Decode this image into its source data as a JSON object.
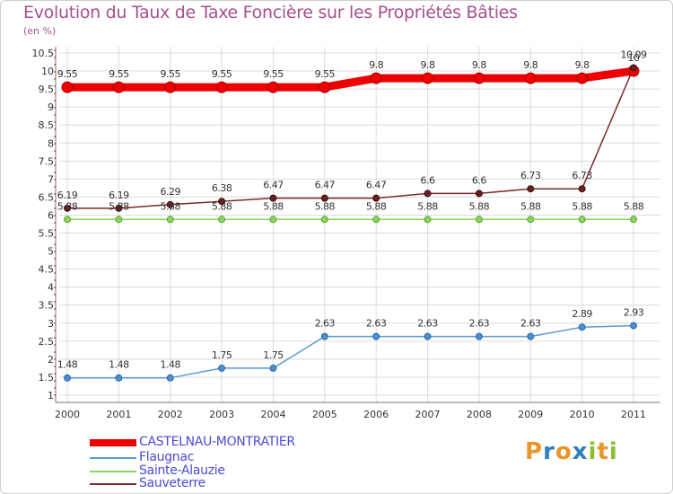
{
  "title": "Evolution du Taux de Taxe Foncière sur les Propriétés Bâties",
  "unit_label": "(en %)",
  "logo": {
    "text": "Proxiti",
    "letters": [
      "P",
      "r",
      "o",
      "x",
      "i",
      "t",
      "i"
    ],
    "colors": [
      "#e8962a",
      "#2f7fc1",
      "#e8962a",
      "#2f7fc1",
      "#8bbf2f",
      "#e8962a",
      "#8bbf2f"
    ]
  },
  "chart_data": {
    "type": "line",
    "title": "Evolution du Taux de Taxe Foncière sur les Propriétés Bâties",
    "ylabel": "(en %)",
    "xlabel": "",
    "x": [
      "2000",
      "2001",
      "2002",
      "2003",
      "2004",
      "2005",
      "2006",
      "2007",
      "2008",
      "2009",
      "2010",
      "2011"
    ],
    "ylim": [
      1,
      10.5
    ],
    "yticks": [
      "1",
      "1.5",
      "2",
      "2.5",
      "3",
      "3.5",
      "4",
      "4.5",
      "5",
      "5.5",
      "6",
      "6.5",
      "7",
      "7.5",
      "8",
      "8.5",
      "9",
      "9.5",
      "10",
      "10.5"
    ],
    "grid": true,
    "legend_position": "bottom",
    "series": [
      {
        "name": "CASTELNAU-MONTRATIER",
        "color": "#ee0000",
        "values": [
          9.55,
          9.55,
          9.55,
          9.55,
          9.55,
          9.55,
          9.8,
          9.8,
          9.8,
          9.8,
          9.8,
          10
        ],
        "labels": [
          "9.55",
          "9.55",
          "9.55",
          "9.55",
          "9.55",
          "9.55",
          "9.8",
          "9.8",
          "9.8",
          "9.8",
          "9.8",
          "10"
        ]
      },
      {
        "name": "Flaugnac",
        "color": "#5b9bd5",
        "values": [
          1.48,
          1.48,
          1.48,
          1.75,
          1.75,
          2.63,
          2.63,
          2.63,
          2.63,
          2.63,
          2.89,
          2.93
        ],
        "labels": [
          "1.48",
          "1.48",
          "1.48",
          "1.75",
          "1.75",
          "2.63",
          "2.63",
          "2.63",
          "2.63",
          "2.63",
          "2.89",
          "2.93"
        ]
      },
      {
        "name": "Sainte-Alauzie",
        "color": "#8dd35f",
        "values": [
          5.88,
          5.88,
          5.88,
          5.88,
          5.88,
          5.88,
          5.88,
          5.88,
          5.88,
          5.88,
          5.88,
          5.88
        ],
        "labels": [
          "5.88",
          "5.88",
          "5.88",
          "5.88",
          "5.88",
          "5.88",
          "5.88",
          "5.88",
          "5.88",
          "5.88",
          "5.88",
          "5.88"
        ]
      },
      {
        "name": "Sauveterre",
        "color": "#7b2a2a",
        "values": [
          6.19,
          6.19,
          6.29,
          6.38,
          6.47,
          6.47,
          6.47,
          6.6,
          6.6,
          6.73,
          6.73,
          10.09
        ],
        "labels": [
          "6.19",
          "6.19",
          "6.29",
          "6.38",
          "6.47",
          "6.47",
          "6.47",
          "6.6",
          "6.6",
          "6.73",
          "6.73",
          "10.09"
        ]
      }
    ]
  }
}
